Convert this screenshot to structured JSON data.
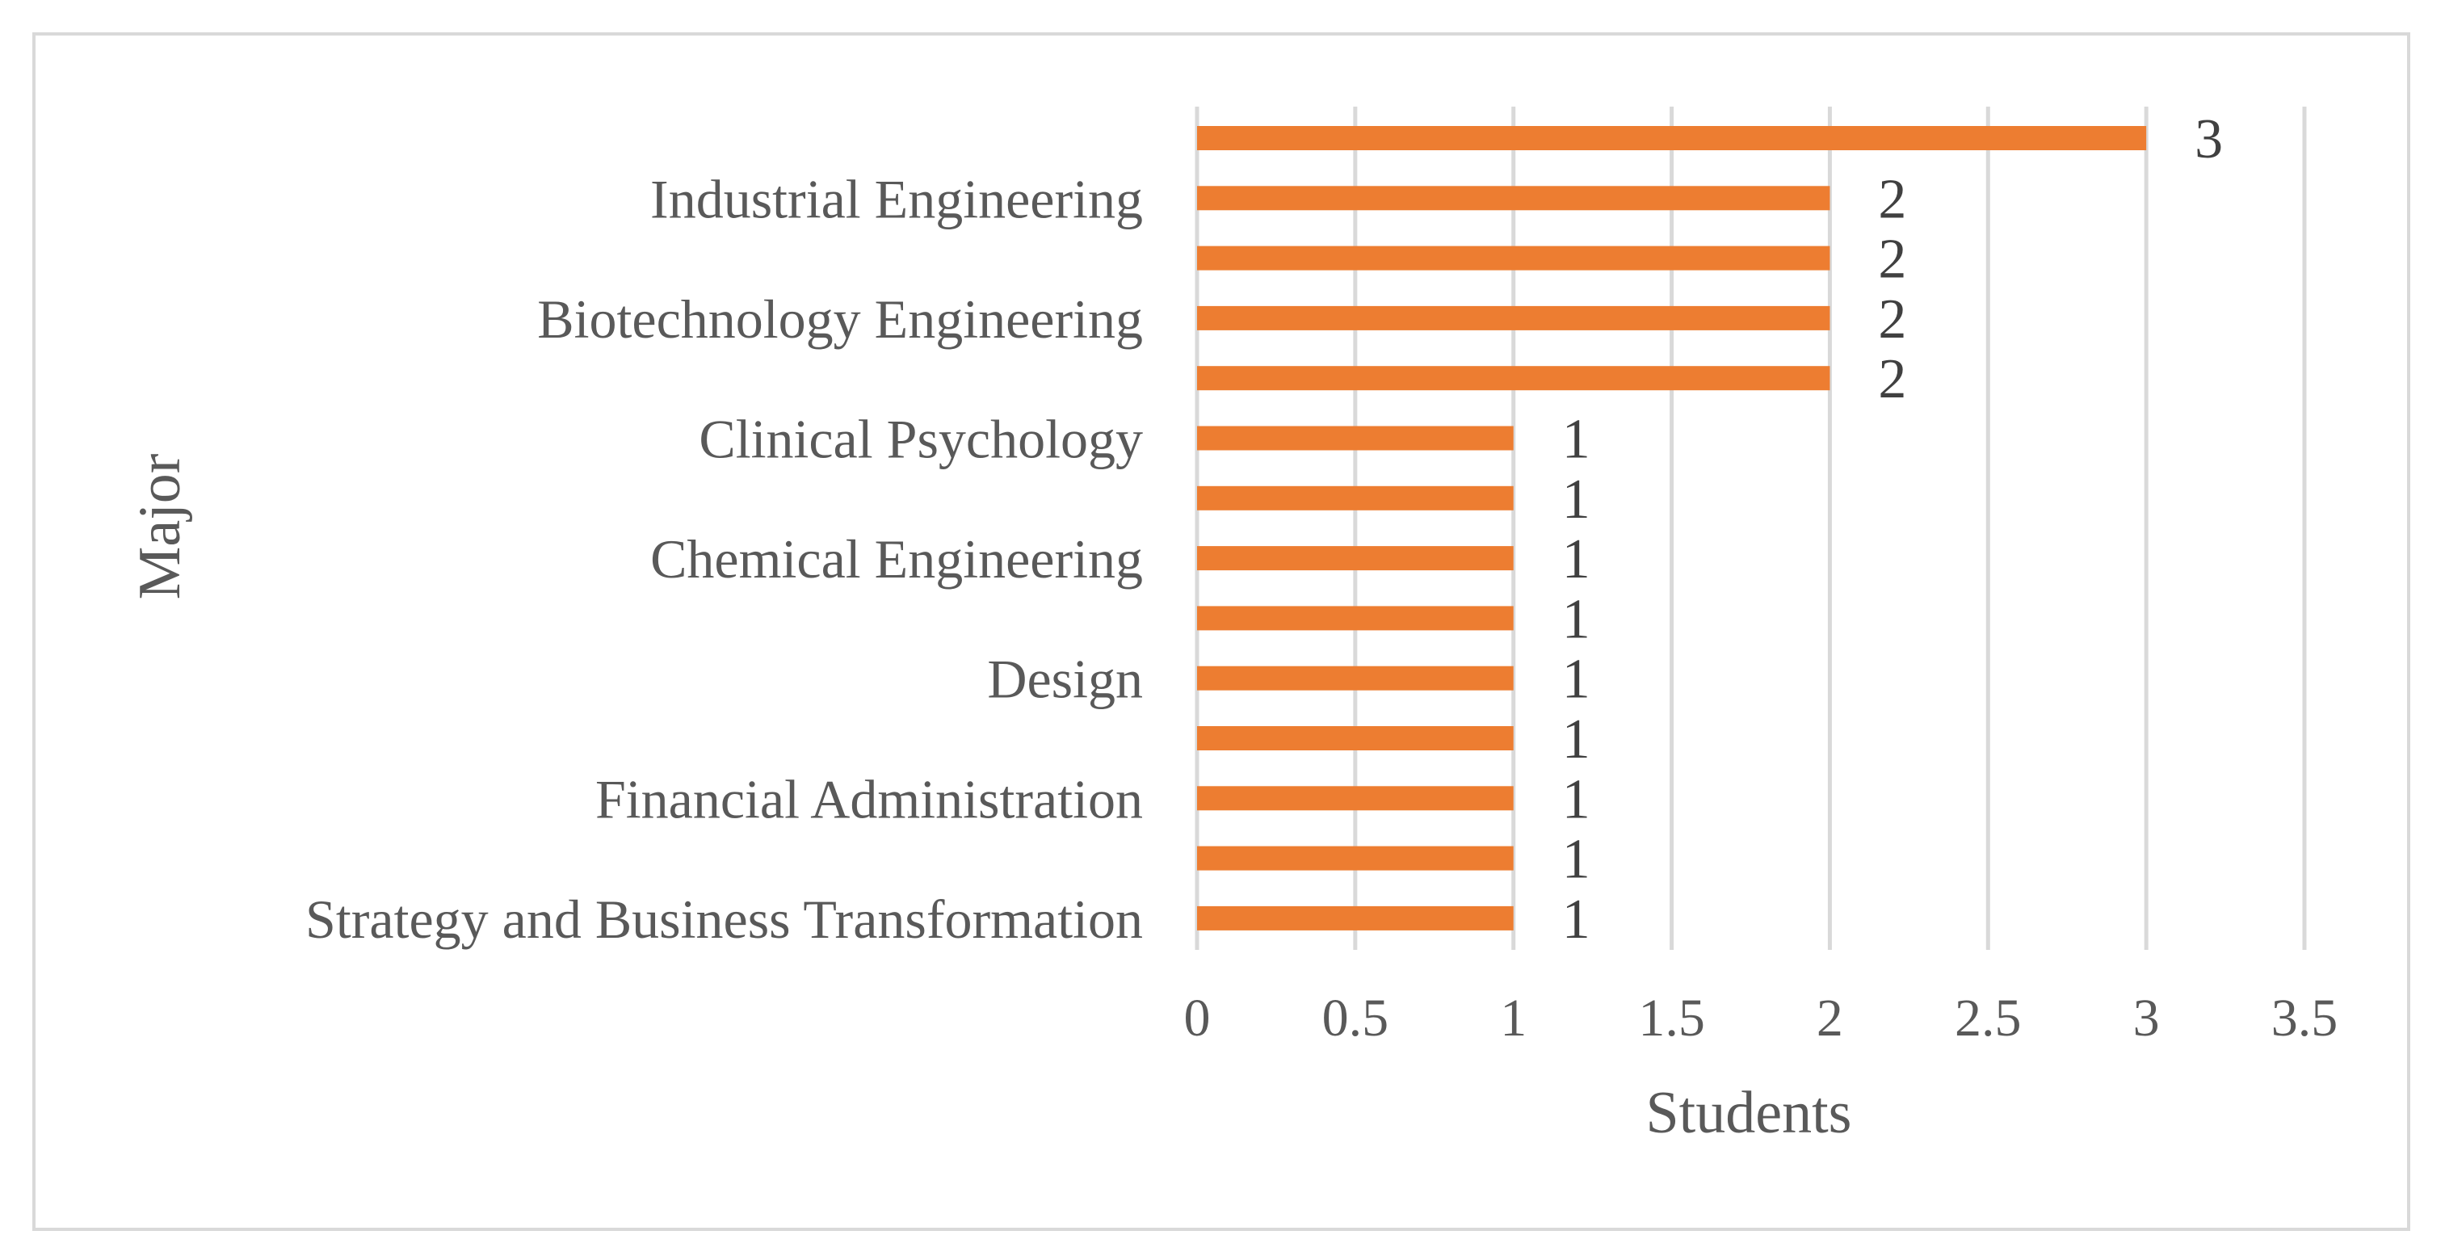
{
  "chart_data": {
    "type": "bar",
    "orientation": "horizontal",
    "title": "",
    "xlabel": "Students",
    "ylabel": "Major",
    "xlim": [
      0,
      3.5
    ],
    "x_ticks": [
      0,
      0.5,
      1,
      1.5,
      2,
      2.5,
      3,
      3.5
    ],
    "grid": true,
    "bar_color": "#ED7D31",
    "categories": [
      "",
      "Industrial Engineering",
      "",
      "Biotechnology Engineering",
      "",
      "Clinical Psychology",
      "",
      "Chemical Engineering",
      "",
      "Design",
      "",
      "Financial Administration",
      "",
      "Strategy and Business Transformation"
    ],
    "values": [
      3,
      2,
      2,
      2,
      2,
      1,
      1,
      1,
      1,
      1,
      1,
      1,
      1,
      1
    ],
    "data_labels": [
      "3",
      "2",
      "2",
      "2",
      "2",
      "1",
      "1",
      "1",
      "1",
      "1",
      "1",
      "1",
      "1",
      "1"
    ]
  }
}
